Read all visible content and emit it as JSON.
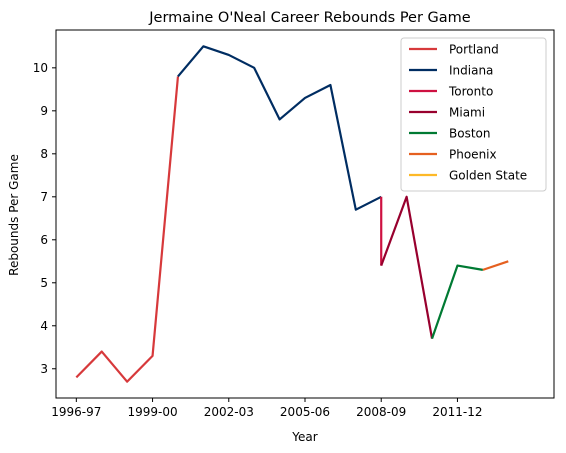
{
  "chart_data": {
    "type": "line",
    "title": "Jermaine O'Neal Career Rebounds Per Game",
    "xlabel": "Year",
    "ylabel": "Rebounds Per Game",
    "xlim": [
      -0.8,
      18.8
    ],
    "ylim": [
      2.32,
      10.88
    ],
    "x_ticks": [
      {
        "pos": 0,
        "label": "1996-97"
      },
      {
        "pos": 3,
        "label": "1999-00"
      },
      {
        "pos": 6,
        "label": "2002-03"
      },
      {
        "pos": 9,
        "label": "2005-06"
      },
      {
        "pos": 12,
        "label": "2008-09"
      },
      {
        "pos": 15,
        "label": "2011-12"
      }
    ],
    "y_ticks": [
      3,
      4,
      5,
      6,
      7,
      8,
      9,
      10
    ],
    "grid": false,
    "legend_position": "top-right",
    "series": [
      {
        "name": "Portland",
        "color": "#d7393b",
        "points": [
          [
            0,
            2.8
          ],
          [
            1,
            3.4
          ],
          [
            2,
            2.7
          ],
          [
            3,
            3.3
          ],
          [
            4,
            9.8
          ]
        ]
      },
      {
        "name": "Indiana",
        "color": "#002d62",
        "points": [
          [
            4,
            9.8
          ],
          [
            5,
            10.5
          ],
          [
            6,
            10.3
          ],
          [
            7,
            10.0
          ],
          [
            8,
            8.8
          ],
          [
            9,
            9.3
          ],
          [
            10,
            9.6
          ],
          [
            11,
            6.7
          ],
          [
            12,
            7.0
          ]
        ]
      },
      {
        "name": "Toronto",
        "color": "#ce1141",
        "points": [
          [
            12,
            7.0
          ],
          [
            12,
            5.4
          ]
        ]
      },
      {
        "name": "Miami",
        "color": "#98002e",
        "points": [
          [
            12,
            5.4
          ],
          [
            13,
            7.0
          ],
          [
            14,
            3.7
          ]
        ]
      },
      {
        "name": "Boston",
        "color": "#007a33",
        "points": [
          [
            14,
            3.7
          ],
          [
            15,
            5.4
          ],
          [
            16,
            5.3
          ]
        ]
      },
      {
        "name": "Phoenix",
        "color": "#e56020",
        "points": [
          [
            16,
            5.3
          ],
          [
            17,
            5.5
          ]
        ]
      },
      {
        "name": "Golden State",
        "color": "#fdb927",
        "points": []
      }
    ]
  }
}
